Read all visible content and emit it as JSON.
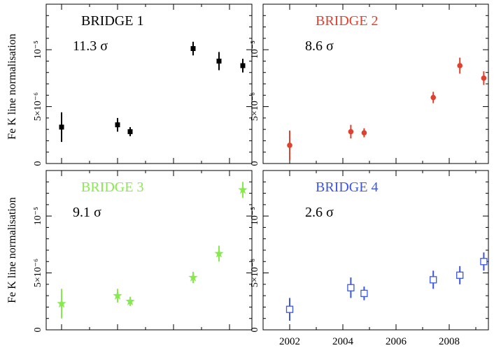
{
  "figure": {
    "ylabel": "Fe K line normalisation",
    "x_ticks": [
      "2002",
      "2004",
      "2006",
      "2008"
    ]
  },
  "chart_data": [
    {
      "type": "scatter",
      "title": "BRIDGE 1",
      "annotation": "11.3 σ",
      "color": "#000000",
      "marker": "filled-square",
      "ylabel": "Fe K line normalisation",
      "xlim": [
        2001.6,
        2009.8
      ],
      "ylim": [
        0,
        1.4e-05
      ],
      "y_tick_labels": [
        "0",
        "5×10⁻⁶",
        "10⁻⁵"
      ],
      "points": [
        {
          "x": 2002.0,
          "y": 3.2e-06,
          "err": 1.3e-06
        },
        {
          "x": 2004.3,
          "y": 3.4e-06,
          "err": 6e-07
        },
        {
          "x": 2004.8,
          "y": 2.8e-06,
          "err": 4e-07
        },
        {
          "x": 2007.4,
          "y": 1.01e-05,
          "err": 6e-07
        },
        {
          "x": 2008.4,
          "y": 9e-06,
          "err": 8e-07
        },
        {
          "x": 2009.3,
          "y": 8.6e-06,
          "err": 6e-07
        }
      ]
    },
    {
      "type": "scatter",
      "title": "BRIDGE 2",
      "annotation": "8.6 σ",
      "color": "#e0412f",
      "marker": "filled-circle",
      "xlim": [
        2001.6,
        2009.8
      ],
      "ylim": [
        0,
        1.4e-05
      ],
      "y_tick_labels": [
        "0",
        "5×10⁻⁶",
        "10⁻⁵"
      ],
      "points": [
        {
          "x": 2002.0,
          "y": 1.6e-06,
          "err": 1.3e-06
        },
        {
          "x": 2004.3,
          "y": 2.8e-06,
          "err": 6e-07
        },
        {
          "x": 2004.8,
          "y": 2.7e-06,
          "err": 4e-07
        },
        {
          "x": 2007.4,
          "y": 5.8e-06,
          "err": 5e-07
        },
        {
          "x": 2008.4,
          "y": 8.6e-06,
          "err": 7e-07
        },
        {
          "x": 2009.3,
          "y": 7.5e-06,
          "err": 6e-07
        }
      ]
    },
    {
      "type": "scatter",
      "title": "BRIDGE 3",
      "annotation": "9.1 σ",
      "color": "#85ea4c",
      "marker": "star",
      "ylabel": "Fe K line normalisation",
      "xlim": [
        2001.6,
        2009.8
      ],
      "ylim": [
        0,
        1.4e-05
      ],
      "y_tick_labels": [
        "0",
        "5×10⁻⁶",
        "10⁻⁵"
      ],
      "points": [
        {
          "x": 2002.0,
          "y": 2.3e-06,
          "err": 1.3e-06
        },
        {
          "x": 2004.3,
          "y": 3e-06,
          "err": 6e-07
        },
        {
          "x": 2004.8,
          "y": 2.5e-06,
          "err": 4e-07
        },
        {
          "x": 2007.4,
          "y": 4.6e-06,
          "err": 5e-07
        },
        {
          "x": 2008.4,
          "y": 6.7e-06,
          "err": 7e-07
        },
        {
          "x": 2009.3,
          "y": 1.23e-05,
          "err": 7e-07
        }
      ]
    },
    {
      "type": "scatter",
      "title": "BRIDGE 4",
      "annotation": "2.6 σ",
      "color": "#3b55e6",
      "marker": "open-square",
      "xlim": [
        2001.6,
        2009.8
      ],
      "ylim": [
        0,
        1.4e-05
      ],
      "y_tick_labels": [
        "0",
        "5×10⁻⁶",
        "10⁻⁵"
      ],
      "x_tick_values": [
        2002,
        2004,
        2006,
        2008
      ],
      "points": [
        {
          "x": 2002.0,
          "y": 1.8e-06,
          "err": 1e-06
        },
        {
          "x": 2004.3,
          "y": 3.7e-06,
          "err": 9e-07
        },
        {
          "x": 2004.8,
          "y": 3.2e-06,
          "err": 6e-07
        },
        {
          "x": 2007.4,
          "y": 4.4e-06,
          "err": 8e-07
        },
        {
          "x": 2008.4,
          "y": 4.8e-06,
          "err": 8e-07
        },
        {
          "x": 2009.3,
          "y": 6e-06,
          "err": 8e-07
        }
      ]
    }
  ]
}
